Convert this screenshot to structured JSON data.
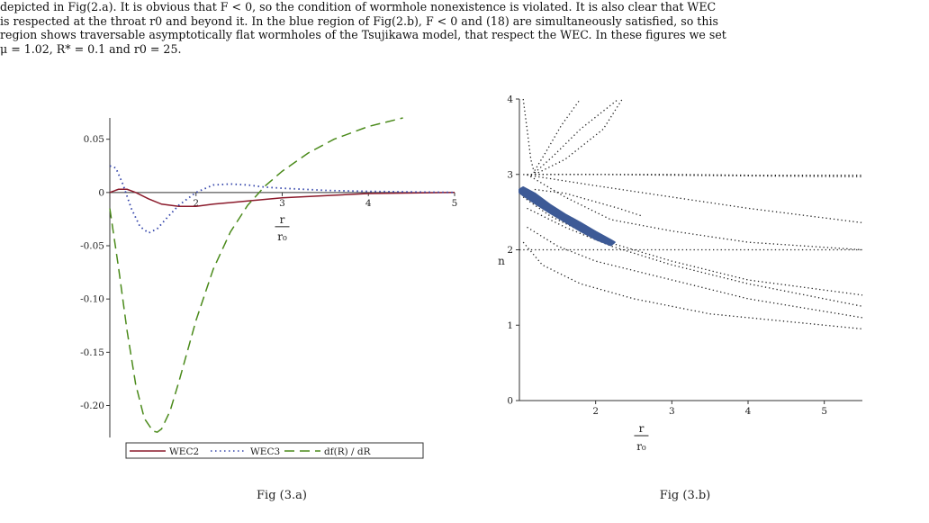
{
  "text": {
    "lines": [
      "depicted in Fig(2.a). It is obvious that F < 0, so the condition of wormhole nonexistence is violated. It is also clear that WEC",
      "is respected at the throat r0 and beyond it. In the blue region of Fig(2.b), F < 0 and (18) are simultaneously satisfied, so this",
      "region shows traversable asymptotically flat wormholes of the Tsujikawa model, that respect the WEC. In these figures we set",
      "μ = 1.02, R* = 0.1 and r0 = 25."
    ]
  },
  "chart_data": [
    {
      "type": "line",
      "caption": "Fig (3.a)",
      "xlabel": "r / r0",
      "xlabel_num": "r",
      "xlabel_den": "r0",
      "xlim": [
        1,
        5
      ],
      "ylim": [
        -0.23,
        0.07
      ],
      "xticks": [
        2,
        3,
        4,
        5
      ],
      "yticks": [
        0.05,
        0,
        -0.05,
        -0.1,
        -0.15,
        -0.2
      ],
      "ytick_labels": [
        "0.05",
        "0",
        "-0.05",
        "-0.10",
        "-0.15",
        "-0.20"
      ],
      "legend_position": "bottom",
      "series": [
        {
          "name": "WEC2",
          "color": "#8b1a2b",
          "style": "solid",
          "x": [
            1.0,
            1.1,
            1.2,
            1.3,
            1.45,
            1.6,
            1.8,
            2.0,
            2.2,
            2.6,
            3.0,
            3.5,
            4.0,
            4.5,
            5.0
          ],
          "y": [
            0.0,
            0.003,
            0.003,
            0.0,
            -0.006,
            -0.011,
            -0.013,
            -0.013,
            -0.011,
            -0.008,
            -0.005,
            -0.003,
            -0.001,
            -0.0005,
            0.0
          ]
        },
        {
          "name": "WEC3",
          "color": "#3344aa",
          "style": "dotted",
          "x": [
            1.0,
            1.07,
            1.15,
            1.25,
            1.35,
            1.45,
            1.55,
            1.65,
            1.8,
            2.0,
            2.2,
            2.4,
            2.6,
            2.8,
            3.0,
            3.5,
            4.0,
            4.5,
            5.0
          ],
          "y": [
            0.025,
            0.023,
            0.008,
            -0.015,
            -0.032,
            -0.038,
            -0.034,
            -0.025,
            -0.012,
            0.0,
            0.007,
            0.008,
            0.007,
            0.005,
            0.004,
            0.002,
            0.001,
            0.0005,
            0.0
          ]
        },
        {
          "name": "df(R) / dR",
          "color": "#4a8a1a",
          "style": "dashed",
          "x": [
            1.0,
            1.1,
            1.2,
            1.3,
            1.4,
            1.5,
            1.55,
            1.6,
            1.7,
            1.8,
            2.0,
            2.2,
            2.4,
            2.6,
            2.8,
            3.0,
            3.3,
            3.6,
            4.0,
            4.4
          ],
          "y": [
            -0.015,
            -0.07,
            -0.13,
            -0.18,
            -0.212,
            -0.224,
            -0.225,
            -0.222,
            -0.205,
            -0.178,
            -0.12,
            -0.072,
            -0.037,
            -0.012,
            0.006,
            0.02,
            0.037,
            0.05,
            0.062,
            0.07
          ]
        }
      ]
    },
    {
      "type": "scatter",
      "caption": "Fig (3.b)",
      "xlabel": "r / r0",
      "xlabel_num": "r",
      "xlabel_den": "r0",
      "ylabel": "n",
      "xlim": [
        1,
        5.5
      ],
      "ylim": [
        0,
        4
      ],
      "xticks": [
        2,
        3,
        4,
        5
      ],
      "yticks": [
        0,
        1,
        2,
        3,
        4
      ],
      "region": {
        "color": "#3d5a96",
        "x": [
          1.0,
          1.05,
          1.2,
          1.4,
          1.6,
          1.8,
          2.0,
          2.2,
          2.25,
          2.2,
          2.0,
          1.8,
          1.6,
          1.4,
          1.2,
          1.05,
          1.0
        ],
        "y": [
          2.8,
          2.83,
          2.75,
          2.6,
          2.47,
          2.36,
          2.24,
          2.13,
          2.1,
          2.06,
          2.14,
          2.25,
          2.37,
          2.49,
          2.62,
          2.72,
          2.76
        ]
      },
      "curves": [
        {
          "x": [
            1.05,
            1.1,
            1.15,
            1.2
          ],
          "y": [
            4.0,
            3.6,
            3.2,
            3.0
          ]
        },
        {
          "x": [
            1.2,
            1.35,
            1.55,
            1.8
          ],
          "y": [
            3.05,
            3.3,
            3.65,
            4.0
          ]
        },
        {
          "x": [
            1.2,
            1.45,
            1.8,
            2.3
          ],
          "y": [
            3.02,
            3.25,
            3.6,
            4.0
          ]
        },
        {
          "x": [
            1.2,
            1.6,
            2.1,
            2.35
          ],
          "y": [
            3.0,
            3.2,
            3.6,
            4.0
          ]
        },
        {
          "x": [
            1.1,
            2.0,
            3.0,
            4.0,
            5.5
          ],
          "y": [
            3.0,
            3.0,
            2.99,
            2.98,
            2.97
          ]
        },
        {
          "x": [
            1.1,
            2.0,
            3.0,
            4.0,
            5.5
          ],
          "y": [
            3.0,
            3.0,
            3.0,
            2.99,
            2.99
          ]
        },
        {
          "x": [
            1.05,
            2.0,
            3.0,
            4.0,
            5.5
          ],
          "y": [
            3.0,
            2.85,
            2.7,
            2.55,
            2.36
          ]
        },
        {
          "x": [
            1.1,
            1.6,
            2.2,
            3.0,
            4.0,
            5.5
          ],
          "y": [
            3.0,
            2.7,
            2.4,
            2.25,
            2.1,
            2.0
          ]
        },
        {
          "x": [
            1.0,
            5.5
          ],
          "y": [
            2.0,
            2.0
          ]
        },
        {
          "x": [
            1.05,
            1.4,
            2.0,
            3.0,
            4.0,
            5.5
          ],
          "y": [
            2.7,
            2.45,
            2.15,
            1.85,
            1.6,
            1.4
          ]
        },
        {
          "x": [
            1.1,
            1.6,
            2.2,
            3.0,
            4.0,
            5.5
          ],
          "y": [
            2.55,
            2.3,
            2.05,
            1.8,
            1.55,
            1.25
          ]
        },
        {
          "x": [
            1.1,
            1.5,
            2.0,
            3.0,
            4.0,
            5.5
          ],
          "y": [
            2.3,
            2.05,
            1.85,
            1.6,
            1.35,
            1.1
          ]
        },
        {
          "x": [
            1.05,
            1.3,
            1.8,
            2.5,
            3.5,
            5.5
          ],
          "y": [
            2.1,
            1.8,
            1.55,
            1.35,
            1.15,
            0.95
          ]
        },
        {
          "x": [
            1.2,
            1.6,
            2.3,
            2.6
          ],
          "y": [
            2.8,
            2.75,
            2.55,
            2.45
          ]
        }
      ]
    }
  ]
}
